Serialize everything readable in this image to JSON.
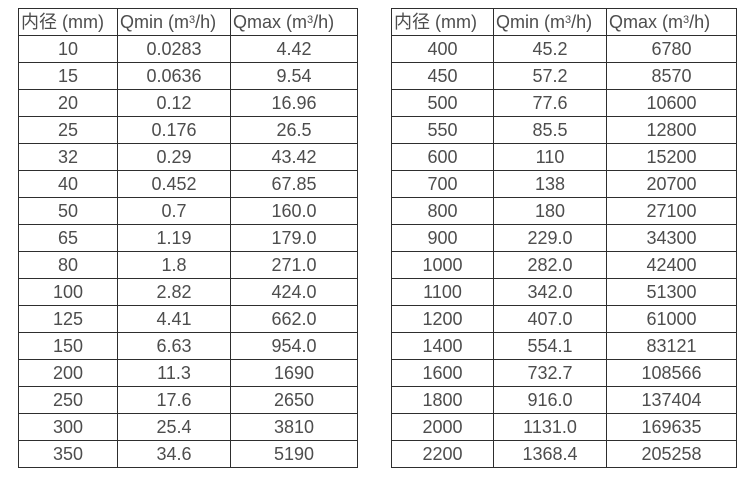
{
  "page": {
    "background_color": "#ffffff",
    "border_color": "#2e2e2e",
    "text_color": "#4d4d4d"
  },
  "tables": [
    {
      "name": "flow-rates-small-diameters",
      "headers": [
        {
          "text": "内径 (mm)"
        },
        {
          "pre": "Qmin (m",
          "sup": "3",
          "post": "/h)"
        },
        {
          "pre": "Qmax (m",
          "sup": "3",
          "post": "/h)"
        }
      ],
      "rows": [
        [
          "10",
          "0.0283",
          "4.42"
        ],
        [
          "15",
          "0.0636",
          "9.54"
        ],
        [
          "20",
          "0.12",
          "16.96"
        ],
        [
          "25",
          "0.176",
          "26.5"
        ],
        [
          "32",
          "0.29",
          "43.42"
        ],
        [
          "40",
          "0.452",
          "67.85"
        ],
        [
          "50",
          "0.7",
          "160.0"
        ],
        [
          "65",
          "1.19",
          "179.0"
        ],
        [
          "80",
          "1.8",
          "271.0"
        ],
        [
          "100",
          "2.82",
          "424.0"
        ],
        [
          "125",
          "4.41",
          "662.0"
        ],
        [
          "150",
          "6.63",
          "954.0"
        ],
        [
          "200",
          "11.3",
          "1690"
        ],
        [
          "250",
          "17.6",
          "2650"
        ],
        [
          "300",
          "25.4",
          "3810"
        ],
        [
          "350",
          "34.6",
          "5190"
        ]
      ]
    },
    {
      "name": "flow-rates-large-diameters",
      "headers": [
        {
          "text": "内径 (mm)"
        },
        {
          "pre": "Qmin (m",
          "sup": "3",
          "post": "/h)"
        },
        {
          "pre": "Qmax (m",
          "sup": "3",
          "post": "/h)"
        }
      ],
      "rows": [
        [
          "400",
          "45.2",
          "6780"
        ],
        [
          "450",
          "57.2",
          "8570"
        ],
        [
          "500",
          "77.6",
          "10600"
        ],
        [
          "550",
          "85.5",
          "12800"
        ],
        [
          "600",
          "110",
          "15200"
        ],
        [
          "700",
          "138",
          "20700"
        ],
        [
          "800",
          "180",
          "27100"
        ],
        [
          "900",
          "229.0",
          "34300"
        ],
        [
          "1000",
          "282.0",
          "42400"
        ],
        [
          "1100",
          "342.0",
          "51300"
        ],
        [
          "1200",
          "407.0",
          "61000"
        ],
        [
          "1400",
          "554.1",
          "83121"
        ],
        [
          "1600",
          "732.7",
          "108566"
        ],
        [
          "1800",
          "916.0",
          "137404"
        ],
        [
          "2000",
          "1131.0",
          "169635"
        ],
        [
          "2200",
          "1368.4",
          "205258"
        ]
      ]
    }
  ]
}
